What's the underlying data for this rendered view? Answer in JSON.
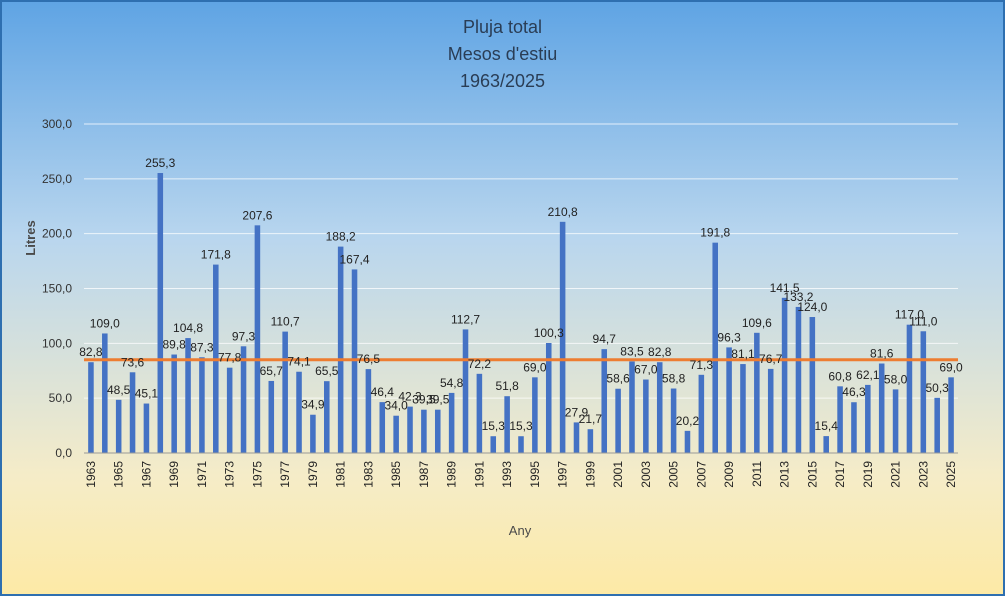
{
  "chart_data": {
    "type": "bar",
    "title": [
      "Pluja total",
      "Mesos d'estiu",
      "1963/2025"
    ],
    "xlabel": "Any",
    "ylabel": "Litres",
    "ylim": [
      0,
      300
    ],
    "yticks": [
      "0,0",
      "50,0",
      "100,0",
      "150,0",
      "200,0",
      "250,0",
      "300,0"
    ],
    "grid": true,
    "bar_color": "#4472c4",
    "line_color": "#ed7d31",
    "average_line_value": 85,
    "categories": [
      "1963",
      "1964",
      "1965",
      "1966",
      "1967",
      "1968",
      "1969",
      "1970",
      "1971",
      "1972",
      "1973",
      "1974",
      "1975",
      "1976",
      "1977",
      "1978",
      "1979",
      "1980",
      "1981",
      "1982",
      "1983",
      "1984",
      "1985",
      "1986",
      "1987",
      "1988",
      "1989",
      "1990",
      "1991",
      "1992",
      "1993",
      "1994",
      "1995",
      "1996",
      "1997",
      "1998",
      "1999",
      "2000",
      "2001",
      "2002",
      "2003",
      "2004",
      "2005",
      "2006",
      "2007",
      "2008",
      "2009",
      "2010",
      "2011",
      "2012",
      "2013",
      "2014",
      "2015",
      "2016",
      "2017",
      "2018",
      "2019",
      "2020",
      "2021",
      "2022",
      "2023",
      "2024",
      "2025"
    ],
    "values": [
      82.8,
      109.0,
      48.5,
      73.6,
      45.1,
      255.3,
      89.8,
      104.8,
      87.3,
      171.8,
      77.8,
      97.3,
      207.6,
      65.7,
      110.7,
      74.1,
      34.9,
      65.5,
      188.2,
      167.4,
      76.5,
      46.4,
      34.0,
      42.3,
      39.5,
      39.5,
      54.8,
      112.7,
      72.2,
      15.3,
      51.8,
      15.3,
      69.0,
      100.3,
      210.8,
      27.9,
      21.7,
      94.7,
      58.6,
      83.5,
      67.0,
      82.8,
      58.8,
      20.2,
      71.3,
      191.8,
      96.3,
      81.1,
      109.6,
      76.7,
      141.5,
      133.2,
      124.0,
      15.4,
      60.8,
      46.3,
      62.1,
      81.6,
      58.0,
      117.0,
      111.0,
      50.3,
      69.0
    ],
    "labels": [
      "82,8",
      "109,0",
      "48,5",
      "73,6",
      "45,1",
      "255,3",
      "89,8",
      "104,8",
      "87,3",
      "171,8",
      "77,8",
      "97,3",
      "207,6",
      "65,7",
      "110,7",
      "74,1",
      "34,9",
      "65,5",
      "188,2",
      "167,4",
      "76,5",
      "46,4",
      "34,0",
      "42,3",
      "39,5",
      "39,5",
      "54,8",
      "112,7",
      "72,2",
      "15,3",
      "51,8",
      "15,3",
      "69,0",
      "100,3",
      "210,8",
      "27,9",
      "21,7",
      "94,7",
      "58,6",
      "83,5",
      "67,0",
      "82,8",
      "58,8",
      "20,2",
      "71,3",
      "191,8",
      "96,3",
      "81,1",
      "109,6",
      "76,7",
      "141,5",
      "133,2",
      "124,0",
      "15,4",
      "60,8",
      "46,3",
      "62,1",
      "81,6",
      "58,0",
      "117,0",
      "111,0",
      "50,3",
      "69,0"
    ]
  }
}
